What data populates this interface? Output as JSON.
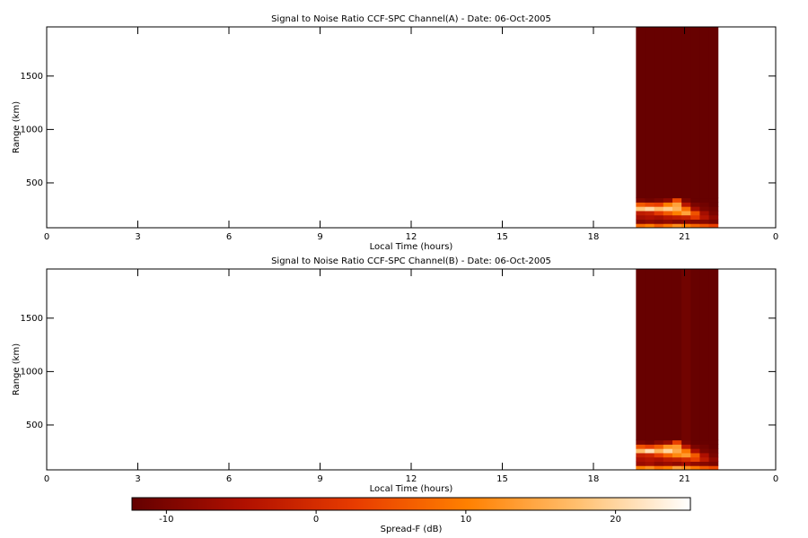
{
  "chart_data": [
    {
      "type": "heatmap",
      "title": "Signal to Noise Ratio CCF-SPC Channel(A) - Date: 06-Oct-2005",
      "xlabel": "Local Time (hours)",
      "ylabel": "Range (km)",
      "xlim": [
        0,
        24
      ],
      "xticks": [
        0,
        3,
        6,
        9,
        12,
        15,
        18,
        21,
        {
          "value": 24,
          "label": "0"
        }
      ],
      "ylim": [
        80,
        1960
      ],
      "yticks": [
        500,
        1000,
        1500
      ],
      "x_edges": [
        19.4,
        19.7,
        20.0,
        20.3,
        20.6,
        20.9,
        21.2,
        21.5,
        21.8,
        22.1
      ],
      "y_edges": [
        80,
        120,
        160,
        200,
        240,
        280,
        320,
        360,
        1960
      ],
      "z": [
        [
          8,
          10,
          6,
          9,
          12,
          10,
          7,
          5,
          3
        ],
        [
          -9,
          -8,
          -9,
          -8,
          -9,
          -8,
          -9,
          -9,
          -10
        ],
        [
          -6,
          -5,
          -6,
          -4,
          -3,
          -2,
          2,
          -4,
          -8
        ],
        [
          -3,
          -2,
          2,
          6,
          10,
          14,
          5,
          -6,
          -10
        ],
        [
          18,
          20,
          17,
          19,
          16,
          8,
          -6,
          -10,
          -11
        ],
        [
          6,
          4,
          3,
          10,
          14,
          -4,
          -10,
          -11,
          -12
        ],
        [
          -10,
          -11,
          -10,
          -8,
          4,
          -10,
          -12,
          -12,
          -12
        ],
        [
          -12,
          -12,
          -12,
          -12,
          -12,
          -12,
          -12,
          -12,
          -12
        ]
      ]
    },
    {
      "type": "heatmap",
      "title": "Signal to Noise Ratio CCF-SPC Channel(B) - Date: 06-Oct-2005",
      "xlabel": "Local Time (hours)",
      "ylabel": "Range (km)",
      "xlim": [
        0,
        24
      ],
      "xticks": [
        0,
        3,
        6,
        9,
        12,
        15,
        18,
        21,
        {
          "value": 24,
          "label": "0"
        }
      ],
      "ylim": [
        80,
        1960
      ],
      "yticks": [
        500,
        1000,
        1500
      ],
      "x_edges": [
        19.4,
        19.7,
        20.0,
        20.3,
        20.6,
        20.9,
        21.2,
        21.5,
        21.8,
        22.1
      ],
      "y_edges": [
        80,
        120,
        160,
        200,
        240,
        280,
        320,
        360,
        1960
      ],
      "z": [
        [
          10,
          12,
          8,
          10,
          14,
          12,
          9,
          6,
          4
        ],
        [
          -7,
          -6,
          -8,
          -7,
          -8,
          -6,
          -8,
          -9,
          -10
        ],
        [
          -5,
          -4,
          -5,
          -3,
          -2,
          0,
          3,
          -3,
          -8
        ],
        [
          -2,
          -1,
          3,
          7,
          11,
          13,
          6,
          -5,
          -10
        ],
        [
          17,
          21,
          16,
          20,
          15,
          9,
          -5,
          -10,
          -11
        ],
        [
          5,
          3,
          6,
          12,
          13,
          -3,
          -10,
          -11,
          -12
        ],
        [
          -10,
          -11,
          -9,
          -7,
          3,
          -10,
          -12,
          -12,
          -12
        ],
        [
          -12,
          -12,
          -12,
          -12,
          -12,
          -11,
          -12,
          -12,
          -12
        ]
      ]
    }
  ],
  "colorbar": {
    "label": "Spread-F (dB)",
    "clim": [
      -12.3,
      25
    ],
    "ticks": [
      -10,
      0,
      10,
      20
    ],
    "colormap": [
      "#640000",
      "#b01000",
      "#e83c00",
      "#ff8000",
      "#ffc070",
      "#ffffff"
    ]
  }
}
